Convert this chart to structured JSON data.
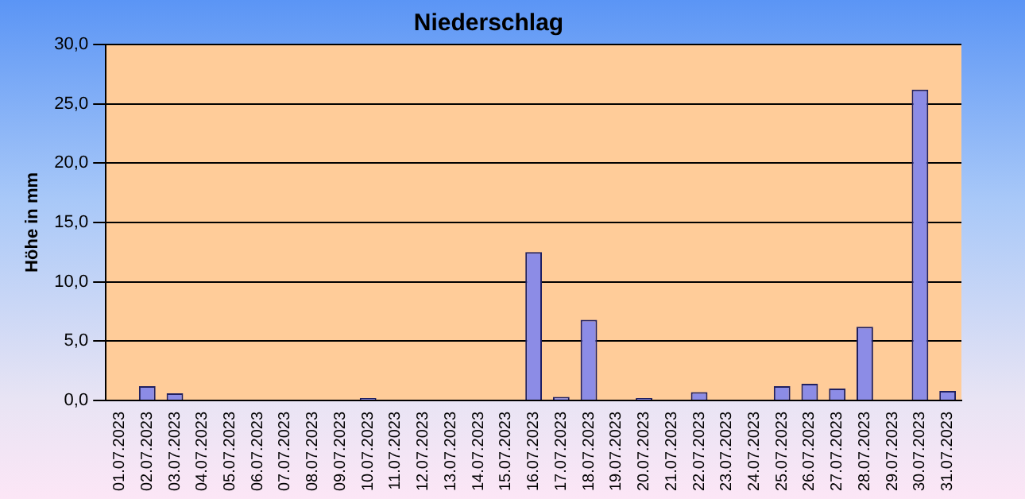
{
  "chart_data": {
    "type": "bar",
    "title": "Niederschlag",
    "ylabel": "Höhe in mm",
    "categories": [
      "01.07.2023",
      "02.07.2023",
      "03.07.2023",
      "04.07.2023",
      "05.07.2023",
      "06.07.2023",
      "07.07.2023",
      "08.07.2023",
      "09.07.2023",
      "10.07.2023",
      "11.07.2023",
      "12.07.2023",
      "13.07.2023",
      "14.07.2023",
      "15.07.2023",
      "16.07.2023",
      "17.07.2023",
      "18.07.2023",
      "19.07.2023",
      "20.07.2023",
      "21.07.2023",
      "22.07.2023",
      "23.07.2023",
      "24.07.2023",
      "25.07.2023",
      "26.07.2023",
      "27.07.2023",
      "28.07.2023",
      "29.07.2023",
      "30.07.2023",
      "31.07.2023"
    ],
    "values": [
      0,
      1.2,
      0.6,
      0,
      0,
      0,
      0,
      0,
      0,
      0.2,
      0,
      0,
      0,
      0,
      0,
      12.5,
      0.3,
      6.8,
      0,
      0.2,
      0,
      0.7,
      0,
      0,
      1.2,
      1.4,
      1.0,
      6.2,
      0,
      26.2,
      0.8
    ],
    "color": "#8c8ce6",
    "ylim": [
      0,
      30
    ],
    "yticks": [
      {
        "value": 0,
        "label": "0,0"
      },
      {
        "value": 5,
        "label": "5,0"
      },
      {
        "value": 10,
        "label": "10,0"
      },
      {
        "value": 15,
        "label": "15,0"
      },
      {
        "value": 20,
        "label": "20,0"
      },
      {
        "value": 25,
        "label": "25,0"
      },
      {
        "value": 30,
        "label": "30,0"
      }
    ],
    "grid": "y",
    "legend": false
  }
}
